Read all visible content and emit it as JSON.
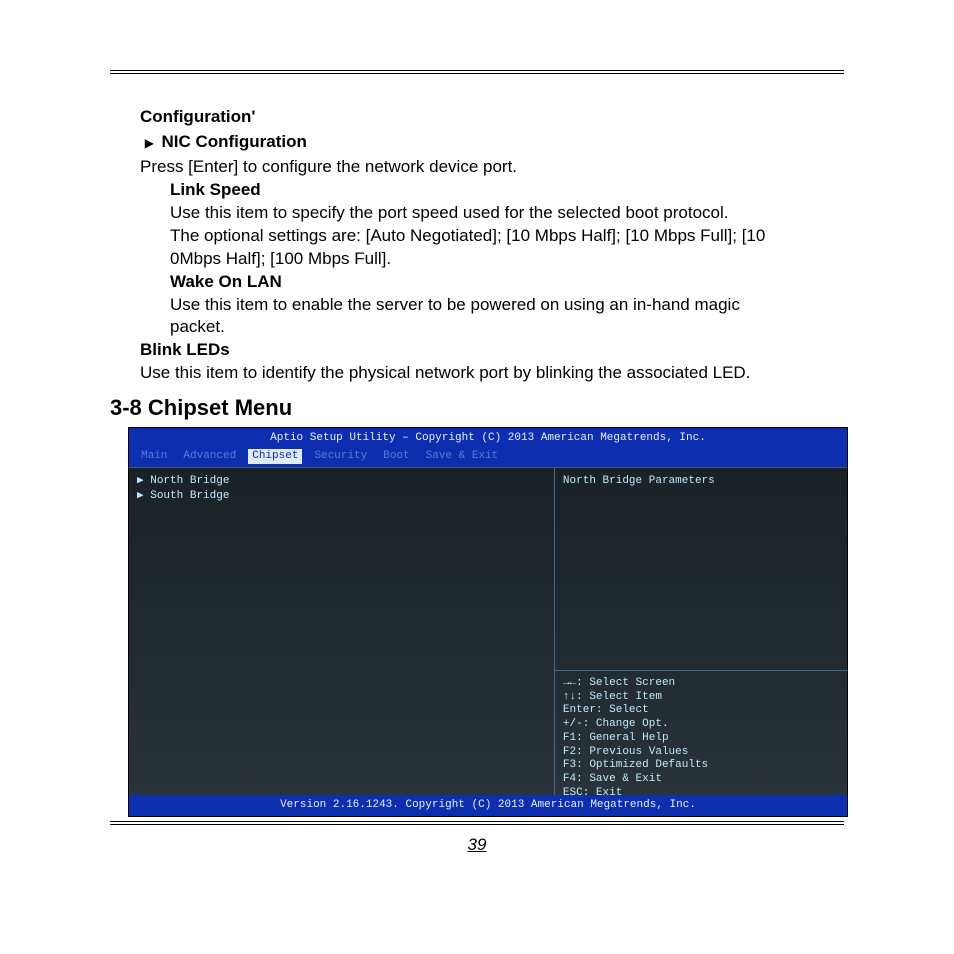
{
  "doc": {
    "config_heading": "Configuration",
    "config_apostrophe": "'",
    "nic_title": "NIC Configuration",
    "nic_triangle": "▶",
    "nic_desc": "Press [Enter] to configure the network device port.",
    "link_speed_title": "Link Speed",
    "link_speed_l1": "Use this item to specify the port speed used for the selected boot protocol.",
    "link_speed_l2": "The optional settings are: [Auto Negotiated]; [10 Mbps Half]; [10 Mbps Full]; [10",
    "link_speed_l3": "0Mbps Half]; [100 Mbps Full].",
    "wol_title": "Wake On LAN",
    "wol_l1": "Use this item to enable the server to be powered on using an in-hand magic",
    "wol_l2": "packet.",
    "blink_title": "Blink LEDs",
    "blink_desc": "Use this item to identify the physical network port by blinking the associated LED.",
    "section_title": "3-8 Chipset Menu",
    "page_number": "39"
  },
  "bios": {
    "titlebar": "Aptio Setup Utility – Copyright (C) 2013 American Megatrends, Inc.",
    "tabs": [
      "Main",
      "Advanced",
      "Chipset",
      "Security",
      "Boot",
      "Save & Exit"
    ],
    "active_tab_index": 2,
    "left_items": [
      "North Bridge",
      "South Bridge"
    ],
    "selected_left_index": 0,
    "right_top": "North Bridge Parameters",
    "help": [
      "→←: Select Screen",
      "↑↓: Select Item",
      "Enter: Select",
      "+/-: Change Opt.",
      "F1: General Help",
      "F2: Previous Values",
      "F3: Optimized Defaults",
      "F4: Save & Exit",
      "ESC: Exit"
    ],
    "footer": "Version 2.16.1243. Copyright (C) 2013 American Megatrends, Inc.",
    "colors": {
      "bar_bg": "#0e2eb0",
      "bar_fg": "#e6eefc",
      "body_bg": "#1e2a2e",
      "text": "#bfeafd",
      "tab_inactive": "#5a78d8",
      "tab_active_bg": "#dfeaf5",
      "tab_active_fg": "#0e2eb0",
      "border": "#3a6a9a"
    }
  }
}
